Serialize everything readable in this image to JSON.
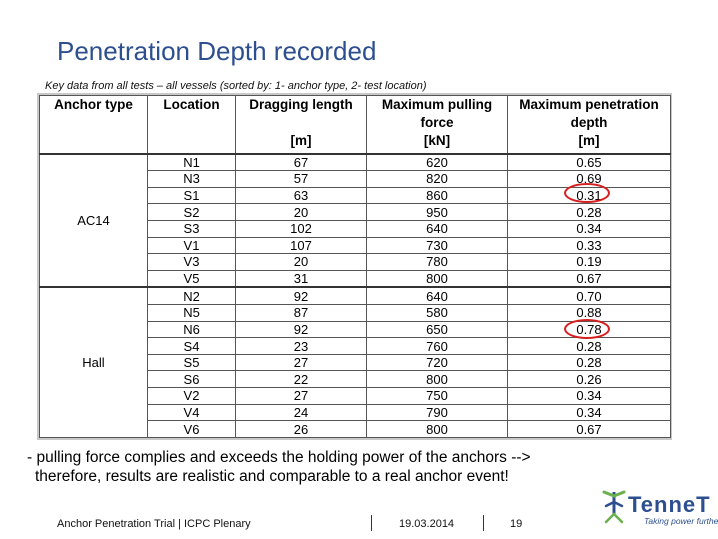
{
  "slide": {
    "title": "Penetration Depth recorded",
    "subtitle": "Key data from all tests – all vessels (sorted by: 1- anchor type, 2- test location)"
  },
  "table": {
    "headers": [
      {
        "label": "Anchor type",
        "unit": ""
      },
      {
        "label": "Location",
        "unit": ""
      },
      {
        "label": "Dragging length",
        "unit": "[m]"
      },
      {
        "label": "Maximum pulling force",
        "unit": "[kN]"
      },
      {
        "label": "Maximum penetration depth",
        "unit": "[m]"
      }
    ],
    "groups": [
      {
        "anchor": "AC14",
        "rows": [
          [
            "N1",
            "67",
            "620",
            "0.65"
          ],
          [
            "N3",
            "57",
            "820",
            "0.69"
          ],
          [
            "S1",
            "63",
            "860",
            "0.31"
          ],
          [
            "S2",
            "20",
            "950",
            "0.28"
          ],
          [
            "S3",
            "102",
            "640",
            "0.34"
          ],
          [
            "V1",
            "107",
            "730",
            "0.33"
          ],
          [
            "V3",
            "20",
            "780",
            "0.19"
          ],
          [
            "V5",
            "31",
            "800",
            "0.67"
          ]
        ]
      },
      {
        "anchor": "Hall",
        "rows": [
          [
            "N2",
            "92",
            "640",
            "0.70"
          ],
          [
            "N5",
            "87",
            "580",
            "0.88"
          ],
          [
            "N6",
            "92",
            "650",
            "0.78"
          ],
          [
            "S4",
            "23",
            "760",
            "0.28"
          ],
          [
            "S5",
            "27",
            "720",
            "0.28"
          ],
          [
            "S6",
            "22",
            "800",
            "0.26"
          ],
          [
            "V2",
            "27",
            "750",
            "0.34"
          ],
          [
            "V4",
            "24",
            "790",
            "0.34"
          ],
          [
            "V6",
            "26",
            "800",
            "0.67"
          ]
        ]
      }
    ],
    "highlight_color": "#d62020"
  },
  "note": {
    "line1": "- pulling force complies and exceeds the holding power of the anchors -->",
    "line2": "therefore, results are realistic and comparable to a real anchor event!"
  },
  "footer": {
    "presentation": "Anchor Penetration Trial | ICPC Plenary",
    "date": "19.03.2014",
    "page": "19"
  },
  "logo": {
    "name": "TenneT",
    "tagline": "Taking power further",
    "colors": {
      "blue": "#2e4f8f",
      "green": "#6ab04c"
    }
  }
}
